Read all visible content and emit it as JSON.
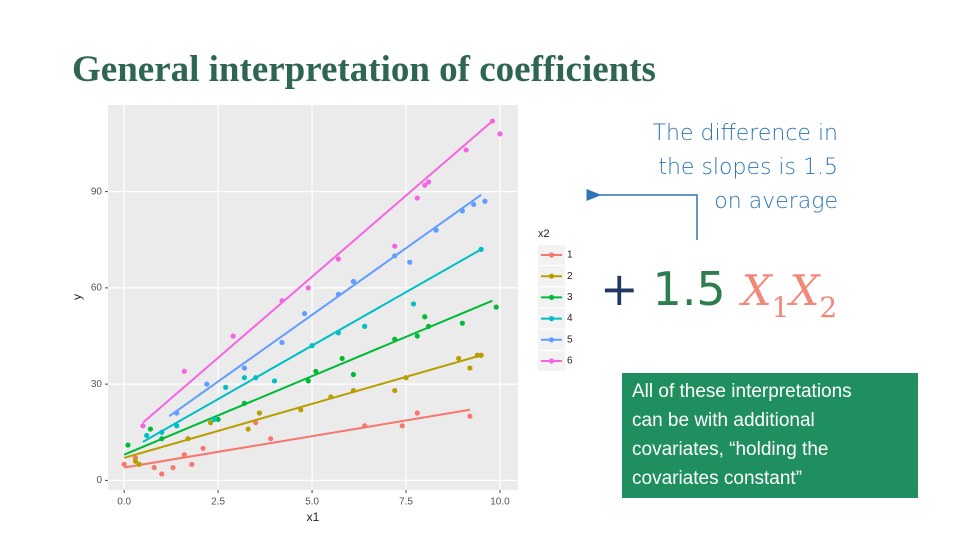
{
  "title": "General interpretation of coefficients",
  "note": [
    "The difference in",
    "the slopes is 1.5",
    "on average"
  ],
  "formula": {
    "plus": "+",
    "coef": "1.5",
    "var1": "X",
    "sub1": "1",
    "var2": "X",
    "sub2": "2"
  },
  "box": [
    "All of these interpretations",
    "can be with additional",
    "covariates, “holding the",
    "covariates constant”"
  ],
  "chart_data": {
    "type": "scatter",
    "x_label": "x1",
    "y_label": "y",
    "legend_title": "x2",
    "grid": true,
    "xlim": [
      -0.43,
      10.48
    ],
    "ylim": [
      -3,
      117
    ],
    "xticks": [
      {
        "value": 0,
        "label": "0.0"
      },
      2.5,
      {
        "value": 5,
        "label": "5.0"
      },
      7.5,
      {
        "value": 10,
        "label": "10.0"
      }
    ],
    "yticks": [
      0,
      30,
      60,
      90
    ],
    "series": [
      {
        "name": "1",
        "color": "#F8766D",
        "x": [
          0,
          0.3,
          0.8,
          1.0,
          1.3,
          1.6,
          1.8,
          2.1,
          3.5,
          3.9,
          6.4,
          7.4,
          7.8,
          9.2
        ],
        "y": [
          5,
          7,
          4,
          2,
          4,
          8,
          5,
          10,
          18,
          13,
          17,
          17,
          21,
          20
        ],
        "fit_x": [
          0,
          9.2
        ],
        "fit_y": [
          4,
          22
        ]
      },
      {
        "name": "2",
        "color": "#B79F00",
        "x": [
          0.3,
          0.4,
          1.7,
          2.3,
          3.3,
          3.6,
          4.7,
          5.5,
          6.1,
          7.2,
          7.5,
          8.9,
          9.2,
          9.4,
          9.5
        ],
        "y": [
          6,
          5,
          13,
          18,
          16,
          21,
          22,
          26,
          28,
          28,
          32,
          38,
          35,
          39,
          39
        ],
        "fit_x": [
          0,
          9.5
        ],
        "fit_y": [
          7,
          39
        ]
      },
      {
        "name": "3",
        "color": "#00BA38",
        "x": [
          0.1,
          0.7,
          1.0,
          2.5,
          3.2,
          4.9,
          5.1,
          5.8,
          6.1,
          7.2,
          7.8,
          8.0,
          8.1,
          9.0,
          9.9
        ],
        "y": [
          11,
          16,
          13,
          19,
          24,
          31,
          34,
          38,
          33,
          44,
          45,
          51,
          48,
          49,
          54
        ],
        "fit_x": [
          0,
          9.8
        ],
        "fit_y": [
          8,
          56
        ]
      },
      {
        "name": "4",
        "color": "#00BFC4",
        "x": [
          0.6,
          1.0,
          1.4,
          2.4,
          2.7,
          3.2,
          3.5,
          4.0,
          5.0,
          5.7,
          6.4,
          7.7,
          9.5
        ],
        "y": [
          14,
          15,
          17,
          19,
          29,
          32,
          32,
          31,
          42,
          46,
          48,
          55,
          72
        ],
        "fit_x": [
          0.5,
          9.5
        ],
        "fit_y": [
          12,
          72
        ]
      },
      {
        "name": "5",
        "color": "#619CFF",
        "x": [
          1.4,
          2.2,
          3.2,
          4.2,
          4.8,
          5.7,
          6.1,
          7.2,
          7.6,
          8.3,
          9.0,
          9.3,
          9.6
        ],
        "y": [
          21,
          30,
          35,
          43,
          52,
          58,
          62,
          70,
          68,
          78,
          84,
          86,
          87
        ],
        "fit_x": [
          1.2,
          9.5
        ],
        "fit_y": [
          20,
          89
        ]
      },
      {
        "name": "6",
        "color": "#F564E3",
        "x": [
          0.5,
          1.6,
          2.9,
          4.2,
          4.9,
          5.7,
          7.2,
          7.8,
          8.0,
          8.1,
          9.1,
          9.8,
          10.0
        ],
        "y": [
          17,
          34,
          45,
          56,
          60,
          69,
          73,
          88,
          92,
          93,
          103,
          112,
          108
        ],
        "fit_x": [
          0.5,
          9.8
        ],
        "fit_y": [
          18,
          112
        ]
      }
    ]
  }
}
